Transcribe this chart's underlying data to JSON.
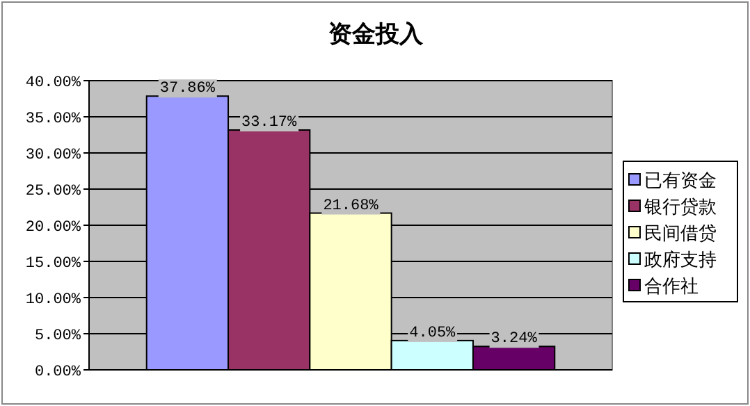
{
  "chart_data": {
    "type": "bar",
    "title": "资金投入",
    "categories": [
      null
    ],
    "series": [
      {
        "name": "已有资金",
        "color": "#9999ff",
        "values": [
          37.86
        ],
        "value_labels": [
          "37.86%"
        ]
      },
      {
        "name": "银行贷款",
        "color": "#993366",
        "values": [
          33.17
        ],
        "value_labels": [
          "33.17%"
        ]
      },
      {
        "name": "民间借贷",
        "color": "#ffffcc",
        "values": [
          21.68
        ],
        "value_labels": [
          "21.68%"
        ]
      },
      {
        "name": "政府支持",
        "color": "#ccffff",
        "values": [
          4.05
        ],
        "value_labels": [
          "4.05%"
        ]
      },
      {
        "name": "合作社",
        "color": "#660066",
        "values": [
          3.24
        ],
        "value_labels": [
          "3.24%"
        ]
      }
    ],
    "ylim": [
      0,
      40
    ],
    "yticks": [
      {
        "value": 0,
        "label": "0.00%"
      },
      {
        "value": 5,
        "label": "5.00%"
      },
      {
        "value": 10,
        "label": "10.00%"
      },
      {
        "value": 15,
        "label": "15.00%"
      },
      {
        "value": 20,
        "label": "20.00%"
      },
      {
        "value": 25,
        "label": "25.00%"
      },
      {
        "value": 30,
        "label": "30.00%"
      },
      {
        "value": 35,
        "label": "35.00%"
      },
      {
        "value": 40,
        "label": "40.00%"
      }
    ],
    "grid": "y",
    "legend": "right"
  }
}
